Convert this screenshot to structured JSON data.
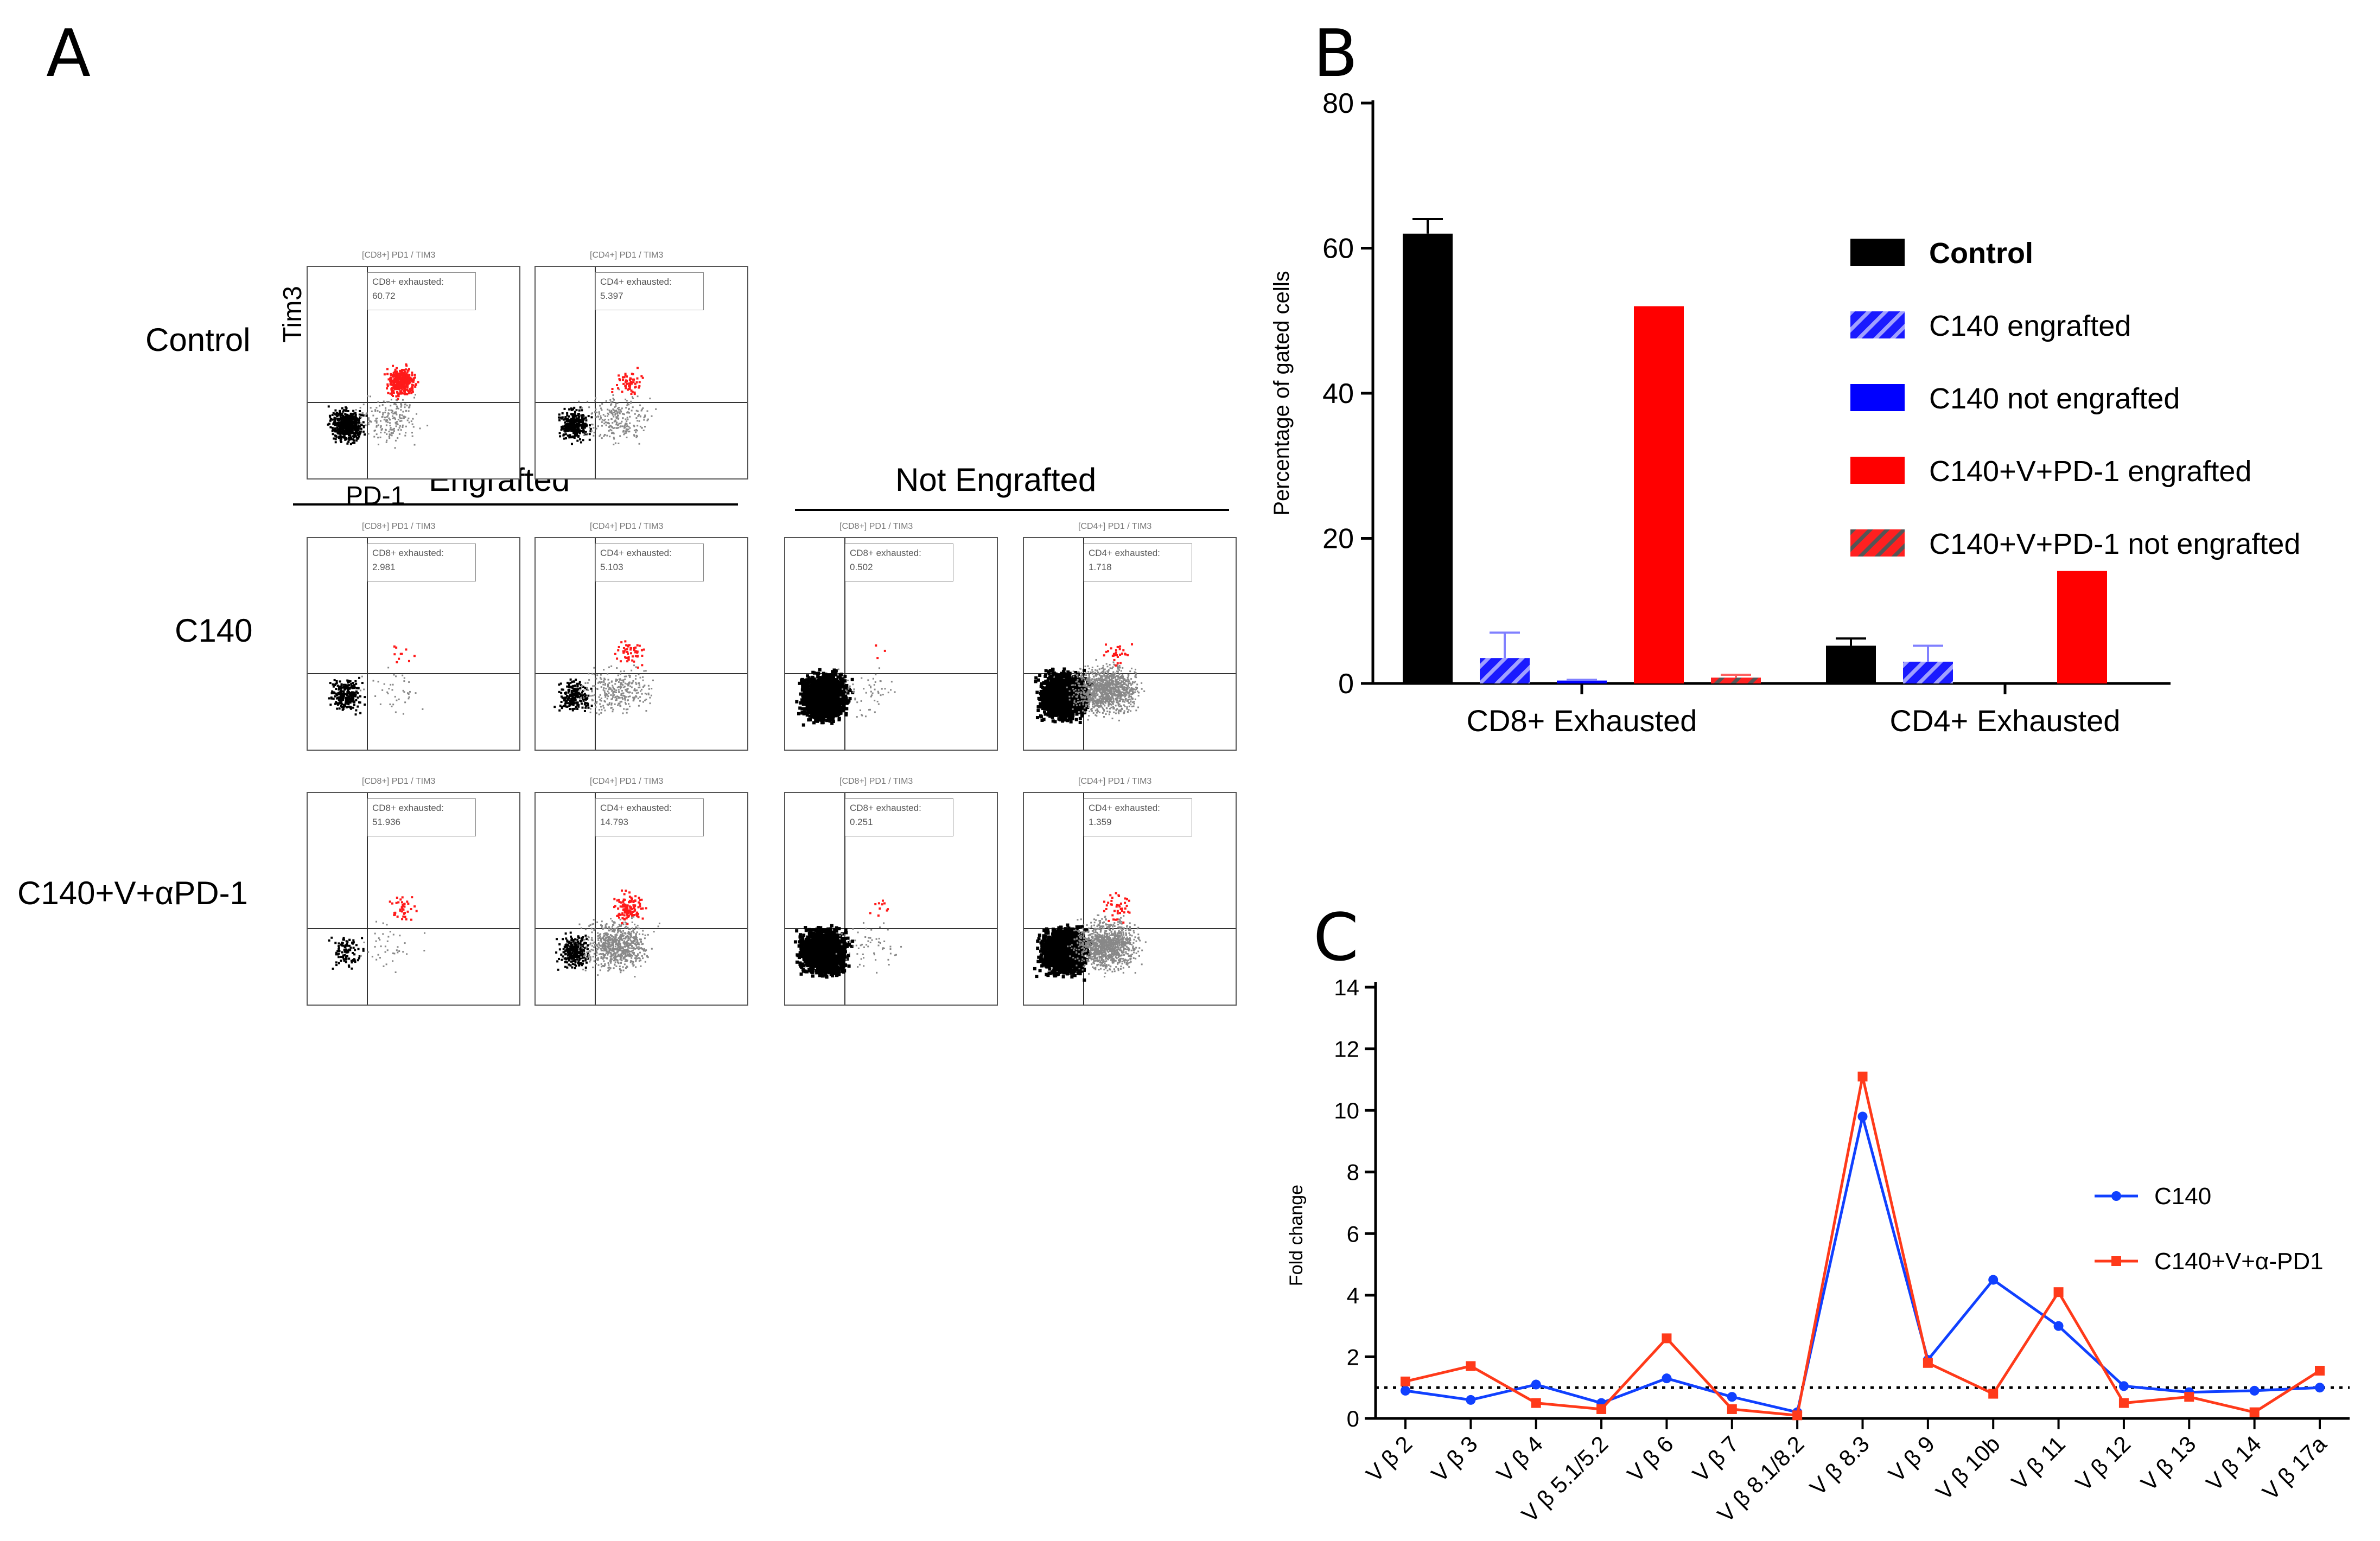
{
  "panelA": {
    "letter": "A",
    "row_labels": [
      "Control",
      "C140",
      "C140+V+αPD-1"
    ],
    "groups": [
      "Engrafted",
      "Not Engrafted"
    ],
    "y_axis_label": "Tim3",
    "x_axis_label": "PD-1",
    "plots": [
      {
        "title": "[CD8+] PD1 / TIM3",
        "gate": "CD8+ exhausted",
        "value": "60.72"
      },
      {
        "title": "[CD4+] PD1 / TIM3",
        "gate": "CD4+ exhausted",
        "value": "5.397"
      },
      {
        "title": "[CD8+] PD1 / TIM3",
        "gate": "CD8+ exhausted",
        "value": "2.981"
      },
      {
        "title": "[CD4+] PD1 / TIM3",
        "gate": "CD4+ exhausted",
        "value": "5.103"
      },
      {
        "title": "[CD8+] PD1 / TIM3",
        "gate": "CD8+ exhausted",
        "value": "0.502"
      },
      {
        "title": "[CD4+] PD1 / TIM3",
        "gate": "CD4+ exhausted",
        "value": "1.718"
      },
      {
        "title": "[CD8+] PD1 / TIM3",
        "gate": "CD8+ exhausted",
        "value": "51.936"
      },
      {
        "title": "[CD4+] PD1 / TIM3",
        "gate": "CD4+ exhausted",
        "value": "14.793"
      },
      {
        "title": "[CD8+] PD1 / TIM3",
        "gate": "CD8+ exhausted",
        "value": "0.251"
      },
      {
        "title": "[CD4+] PD1 / TIM3",
        "gate": "CD4+ exhausted",
        "value": "1.359"
      }
    ]
  },
  "chart_data": [
    {
      "panel": "B",
      "type": "bar",
      "ylabel": "Percentage of gated cells",
      "ylim": [
        0,
        80
      ],
      "yticks": [
        0,
        20,
        40,
        60,
        80
      ],
      "categories": [
        "CD8+ Exhausted",
        "CD4+ Exhausted"
      ],
      "legend_position": "right",
      "series": [
        {
          "name": "Control",
          "values": [
            62,
            5.2
          ],
          "errors": [
            2,
            1
          ],
          "color": "#000000",
          "pattern": "solid"
        },
        {
          "name": "C140 engrafted",
          "values": [
            3.5,
            3
          ],
          "errors": [
            3.5,
            2.2
          ],
          "color": "#1a1aff",
          "pattern": "hatched"
        },
        {
          "name": "C140 not engrafted",
          "values": [
            0.4,
            0
          ],
          "errors": [
            0.1,
            0
          ],
          "color": "#0000ff",
          "pattern": "solid"
        },
        {
          "name": "C140+V+PD-1 engrafted",
          "values": [
            52,
            15.5
          ],
          "errors": [
            0,
            0
          ],
          "color": "#ff0000",
          "pattern": "solid"
        },
        {
          "name": "C140+V+PD-1 not engrafted",
          "values": [
            0.8,
            0
          ],
          "errors": [
            0.4,
            0
          ],
          "color": "#ff0000",
          "pattern": "hatched"
        }
      ]
    },
    {
      "panel": "C",
      "type": "line",
      "ylabel": "Fold change",
      "ylim": [
        0,
        14
      ],
      "yticks": [
        0,
        2,
        4,
        6,
        8,
        10,
        12,
        14
      ],
      "reference_line": 1,
      "categories": [
        "V β 2",
        "V β 3",
        "V β 4",
        "V β 5.1/5.2",
        "V β 6",
        "V β 7",
        "V β 8.1/8.2",
        "V β 8.3",
        "V β 9",
        "V β 10b",
        "V β 11",
        "V β 12",
        "V β 13",
        "V β 14",
        "V β 17a"
      ],
      "legend_position": "right",
      "series": [
        {
          "name": "C140",
          "values": [
            0.9,
            0.6,
            1.1,
            0.5,
            1.3,
            0.7,
            0.2,
            9.8,
            1.9,
            4.5,
            3.0,
            1.05,
            0.85,
            0.9,
            1.0
          ],
          "color": "#1040ff",
          "marker": "circle"
        },
        {
          "name": "C140+V+α-PD1",
          "values": [
            1.2,
            1.7,
            0.5,
            0.3,
            2.6,
            0.3,
            0.1,
            11.1,
            1.8,
            0.8,
            4.1,
            0.5,
            0.7,
            0.2,
            1.55
          ],
          "color": "#ff3a1a",
          "marker": "square"
        }
      ]
    }
  ]
}
